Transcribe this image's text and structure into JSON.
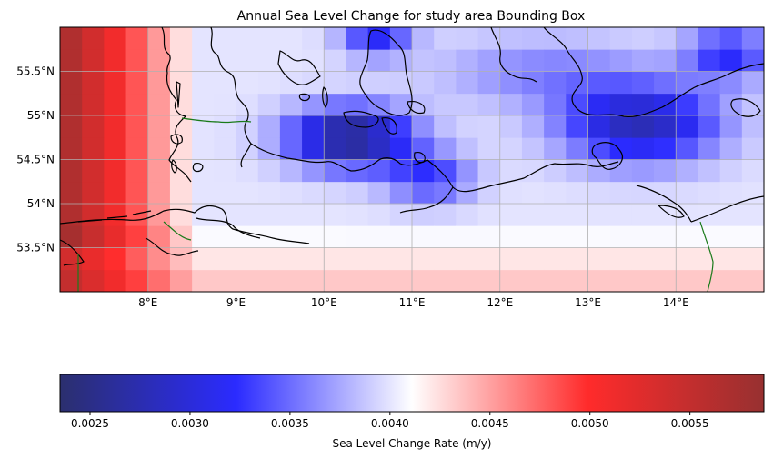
{
  "title": "Annual Sea Level Change for study area Bounding Box",
  "map": {
    "lon_range": [
      7.0,
      15.0
    ],
    "lat_range": [
      53.0,
      56.0
    ],
    "cell_size_deg": 0.25,
    "x_ticks": [
      {
        "value": 8,
        "label": "8°E"
      },
      {
        "value": 9,
        "label": "9°E"
      },
      {
        "value": 10,
        "label": "10°E"
      },
      {
        "value": 11,
        "label": "11°E"
      },
      {
        "value": 12,
        "label": "12°E"
      },
      {
        "value": 13,
        "label": "13°E"
      },
      {
        "value": 14,
        "label": "14°E"
      }
    ],
    "y_ticks": [
      {
        "value": 53.5,
        "label": "53.5°N"
      },
      {
        "value": 54.0,
        "label": "54°N"
      },
      {
        "value": 54.5,
        "label": "54.5°N"
      },
      {
        "value": 55.0,
        "label": "55°N"
      },
      {
        "value": 55.5,
        "label": "55.5°N"
      }
    ],
    "grid": true,
    "coastline_color": "#000000",
    "border_color": "#1a7a1a"
  },
  "colorbar": {
    "label": "Sea Level Change Rate (m/y)",
    "vmin": 0.00235,
    "vmax": 0.00587,
    "ticks": [
      {
        "value": 0.0025,
        "label": "0.0025"
      },
      {
        "value": 0.003,
        "label": "0.0030"
      },
      {
        "value": 0.0035,
        "label": "0.0035"
      },
      {
        "value": 0.004,
        "label": "0.0040"
      },
      {
        "value": 0.0045,
        "label": "0.0045"
      },
      {
        "value": 0.005,
        "label": "0.0050"
      },
      {
        "value": 0.0055,
        "label": "0.0055"
      }
    ],
    "colormap": [
      "#2b2f6e",
      "#2b2bff",
      "#ffffff",
      "#ff2b2b",
      "#973030"
    ]
  },
  "chart_data": {
    "type": "heatmap",
    "title": "Annual Sea Level Change for study area Bounding Box",
    "x_range": [
      7.0,
      15.0
    ],
    "y_range": [
      53.0,
      56.0
    ],
    "color_range": [
      0.00235,
      0.00587
    ],
    "colorbar_label": "Sea Level Change Rate (m/y)"
  }
}
